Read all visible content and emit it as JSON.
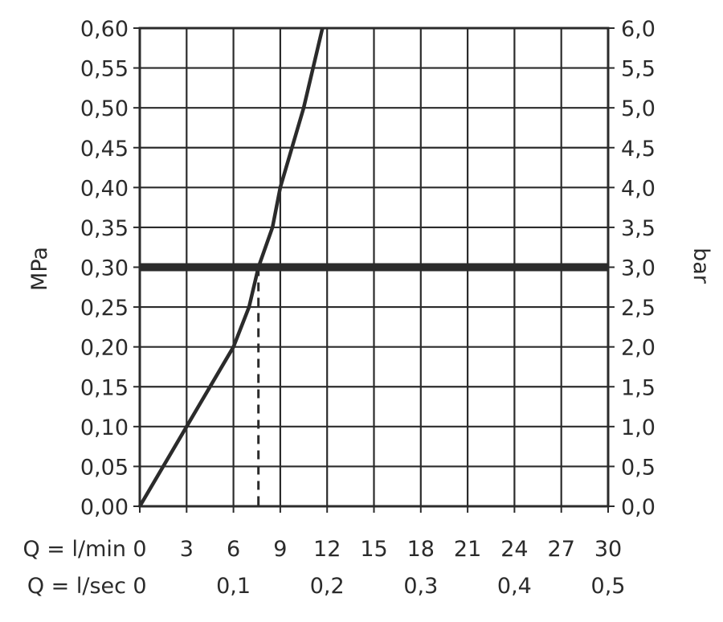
{
  "chart_data": {
    "type": "line",
    "y_left": {
      "label": "MPa",
      "ticks": [
        "0,00",
        "0,05",
        "0,10",
        "0,15",
        "0,20",
        "0,25",
        "0,30",
        "0,35",
        "0,40",
        "0,45",
        "0,50",
        "0,55",
        "0,60"
      ],
      "range": [
        0,
        0.6
      ]
    },
    "y_right": {
      "label": "bar",
      "ticks": [
        "0,0",
        "0,5",
        "1,0",
        "1,5",
        "2,0",
        "2,5",
        "3,0",
        "3,5",
        "4,0",
        "4,5",
        "5,0",
        "5,5",
        "6,0"
      ],
      "range": [
        0,
        6
      ]
    },
    "x_primary": {
      "prefix": "Q = l/min",
      "ticks": [
        {
          "value": 0,
          "label": "0"
        },
        {
          "value": 3,
          "label": "3"
        },
        {
          "value": 6,
          "label": "6"
        },
        {
          "value": 9,
          "label": "9"
        },
        {
          "value": 12,
          "label": "12"
        },
        {
          "value": 15,
          "label": "15"
        },
        {
          "value": 18,
          "label": "18"
        },
        {
          "value": 21,
          "label": "21"
        },
        {
          "value": 24,
          "label": "24"
        },
        {
          "value": 27,
          "label": "27"
        },
        {
          "value": 30,
          "label": "30"
        }
      ],
      "range": [
        0,
        30
      ]
    },
    "x_secondary": {
      "prefix": "Q = l/sec",
      "ticks": [
        {
          "value": 0,
          "label": "0"
        },
        {
          "value": 0.1,
          "label": "0,1"
        },
        {
          "value": 0.2,
          "label": "0,2"
        },
        {
          "value": 0.3,
          "label": "0,3"
        },
        {
          "value": 0.4,
          "label": "0,4"
        },
        {
          "value": 0.5,
          "label": "0,5"
        }
      ],
      "range": [
        0,
        0.5
      ]
    },
    "series": [
      {
        "x": [
          0,
          3,
          4.5,
          6,
          7,
          7.6,
          8.5,
          9,
          10.5,
          11.7
        ],
        "y": [
          0,
          0.1,
          0.15,
          0.2,
          0.25,
          0.3,
          0.35,
          0.4,
          0.5,
          0.6
        ]
      }
    ],
    "reference_line": {
      "y": 0.3
    },
    "operating_point": {
      "x": 7.6,
      "y": 0.3
    },
    "grid": true
  }
}
